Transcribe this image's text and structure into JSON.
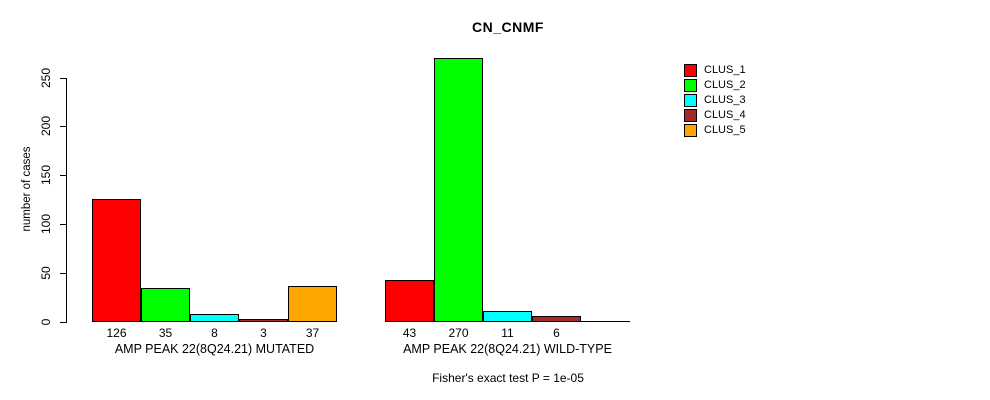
{
  "chart_data": {
    "type": "bar",
    "title": "CN_CNMF",
    "ylabel": "number of cases",
    "xlabel": "",
    "ylim": [
      0,
      270
    ],
    "yticks": [
      0,
      50,
      100,
      150,
      200,
      250
    ],
    "grid": false,
    "legend_position": "topright",
    "categories": [
      "AMP PEAK 22(8Q24.21) MUTATED",
      "AMP PEAK 22(8Q24.21) WILD-TYPE"
    ],
    "series": [
      {
        "name": "CLUS_1",
        "color": "#FF0000",
        "values": [
          126,
          43
        ]
      },
      {
        "name": "CLUS_2",
        "color": "#00FF00",
        "values": [
          35,
          270
        ]
      },
      {
        "name": "CLUS_3",
        "color": "#00FFFF",
        "values": [
          8,
          11
        ]
      },
      {
        "name": "CLUS_4",
        "color": "#A52A2A",
        "values": [
          3,
          6
        ]
      },
      {
        "name": "CLUS_5",
        "color": "#FFA500",
        "values": [
          37,
          0
        ]
      }
    ],
    "bar_value_labels_shown": true,
    "annotation": "Fisher's exact test P = 1e-05"
  },
  "icons": {
    "legend_swatch": "filled-square"
  }
}
